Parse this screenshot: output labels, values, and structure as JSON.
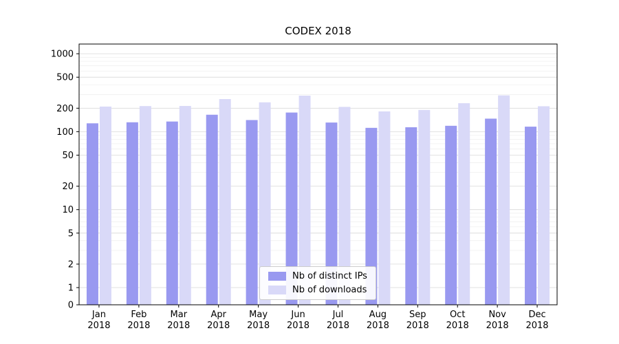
{
  "chart_data": {
    "type": "bar",
    "title": "CODEX 2018",
    "year_label": "2018",
    "categories": [
      "Jan",
      "Feb",
      "Mar",
      "Apr",
      "May",
      "Jun",
      "Jul",
      "Aug",
      "Sep",
      "Oct",
      "Nov",
      "Dec"
    ],
    "series": [
      {
        "name": "Nb of distinct IPs",
        "color": "#9999f0",
        "values": [
          128,
          132,
          135,
          165,
          141,
          176,
          131,
          112,
          114,
          119,
          147,
          116
        ]
      },
      {
        "name": "Nb of downloads",
        "color": "#d9d9f8",
        "values": [
          210,
          213,
          214,
          262,
          238,
          290,
          208,
          182,
          190,
          232,
          292,
          212
        ]
      }
    ],
    "yticks": [
      0,
      1,
      2,
      5,
      10,
      20,
      50,
      100,
      200,
      500,
      1000
    ],
    "yscale": "symlog",
    "ylim": [
      0,
      1300
    ],
    "grid": true,
    "legend_position": "lower center"
  },
  "colors": {
    "axis": "#000000",
    "grid_major": "#d8d8d8",
    "grid_minor": "#ededed",
    "text": "#000000"
  }
}
